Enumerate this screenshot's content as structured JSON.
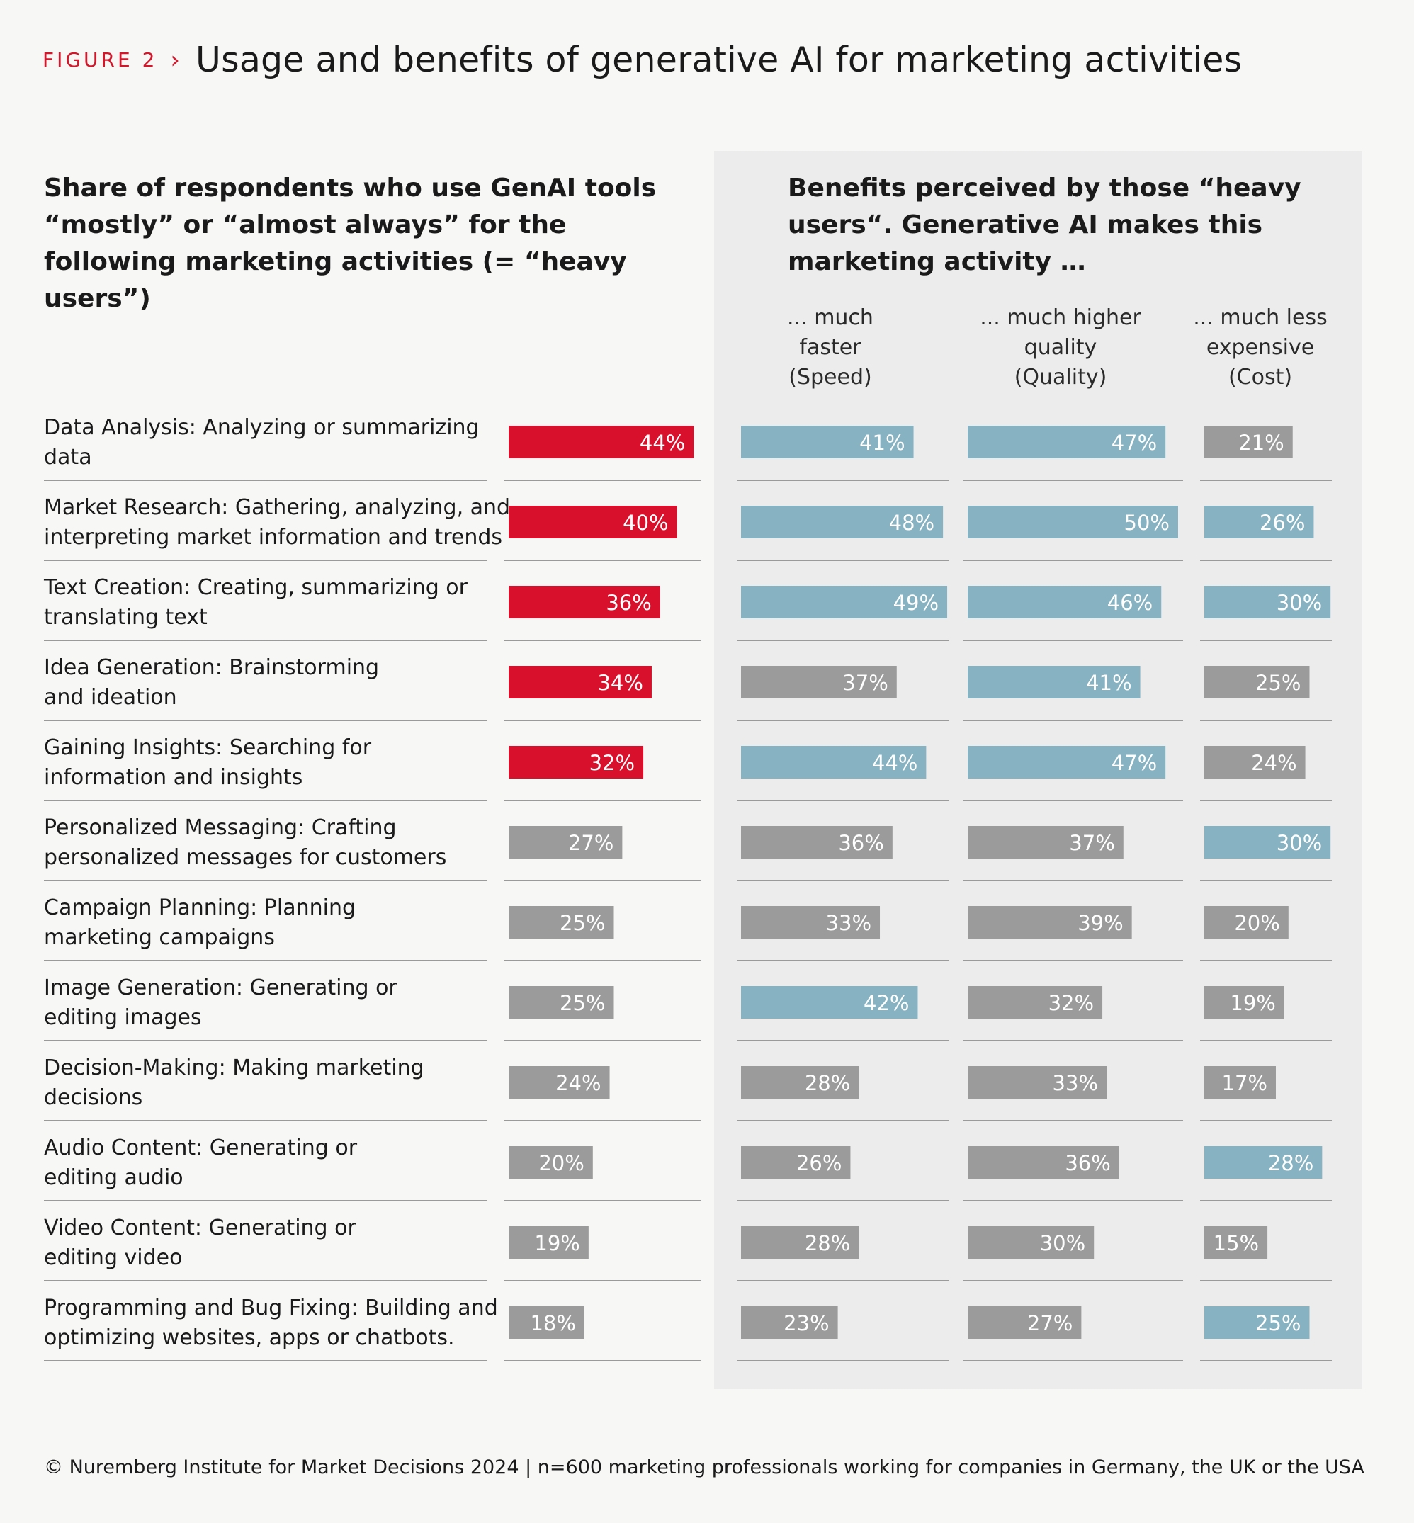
{
  "figure": {
    "tag": "FIGURE 2",
    "title": "Usage and benefits of generative AI for marketing activities"
  },
  "headings": {
    "usage": "Share of respondents who use GenAI tools “mostly” or “almost always” for the following marketing activities (= “heavy users”)",
    "benefit": "Benefits perceived by those “heavy users“. Generative AI makes this marketing activity …"
  },
  "columns": [
    {
      "key": "speed",
      "label": [
        "... much",
        "faster",
        "(Speed)"
      ]
    },
    {
      "key": "quality",
      "label": [
        "... much higher",
        "quality",
        "(Quality)"
      ]
    },
    {
      "key": "cost",
      "label": [
        "... much less",
        "expensive",
        "(Cost)"
      ]
    }
  ],
  "colors": {
    "usage_highlight": "#d8102b",
    "benefit_highlight": "#86b2c2",
    "neutral": "#9b9b9b",
    "rule": "#9a9a9a"
  },
  "chart_data": {
    "type": "bar",
    "orientation": "horizontal",
    "unit": "%",
    "categories": [
      [
        "Data Analysis: Analyzing or summarizing",
        "data"
      ],
      [
        "Market Research: Gathering, analyzing, and",
        "interpreting market information and trends"
      ],
      [
        "Text Creation: Creating, summarizing or",
        "translating text"
      ],
      [
        "Idea Generation: Brainstorming",
        "and ideation"
      ],
      [
        "Gaining Insights: Searching for",
        "information and insights"
      ],
      [
        "Personalized Messaging: Crafting",
        "personalized messages for customers"
      ],
      [
        "Campaign Planning: Planning",
        "marketing campaigns"
      ],
      [
        "Image Generation: Generating or",
        "editing images"
      ],
      [
        "Decision-Making: Making marketing",
        "decisions"
      ],
      [
        "Audio Content: Generating or",
        "editing audio"
      ],
      [
        "Video Content: Generating or",
        "editing video"
      ],
      [
        "Programming and Bug Fixing: Building and",
        "optimizing websites, apps or chatbots."
      ]
    ],
    "series": [
      {
        "key": "usage",
        "values": [
          44,
          40,
          36,
          34,
          32,
          27,
          25,
          25,
          24,
          20,
          19,
          18
        ],
        "highlight": [
          true,
          true,
          true,
          true,
          true,
          false,
          false,
          false,
          false,
          false,
          false,
          false
        ]
      },
      {
        "key": "speed",
        "values": [
          41,
          48,
          49,
          37,
          44,
          36,
          33,
          42,
          28,
          26,
          28,
          23
        ],
        "highlight": [
          true,
          true,
          true,
          false,
          true,
          false,
          false,
          true,
          false,
          false,
          false,
          false
        ]
      },
      {
        "key": "quality",
        "values": [
          47,
          50,
          46,
          41,
          47,
          37,
          39,
          32,
          33,
          36,
          30,
          27
        ],
        "highlight": [
          true,
          true,
          true,
          true,
          true,
          false,
          false,
          false,
          false,
          false,
          false,
          false
        ]
      },
      {
        "key": "cost",
        "values": [
          21,
          26,
          30,
          25,
          24,
          30,
          20,
          19,
          17,
          28,
          15,
          25
        ],
        "highlight": [
          false,
          true,
          true,
          false,
          false,
          true,
          false,
          false,
          false,
          true,
          false,
          true
        ]
      }
    ]
  },
  "source": "© Nuremberg Institute for Market Decisions 2024 | n=600 marketing professionals working for companies in Germany, the UK or the USA"
}
